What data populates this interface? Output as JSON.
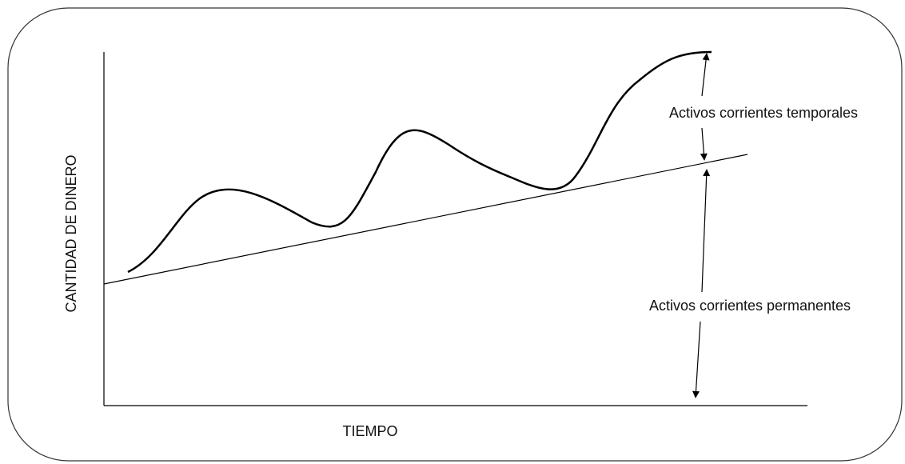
{
  "diagram": {
    "y_axis_label": "CANTIDAD DE DINERO",
    "x_axis_label": "TIEMPO",
    "annotations": [
      "Activos corrientes temporales",
      "Activos corrientes permanentes"
    ]
  }
}
